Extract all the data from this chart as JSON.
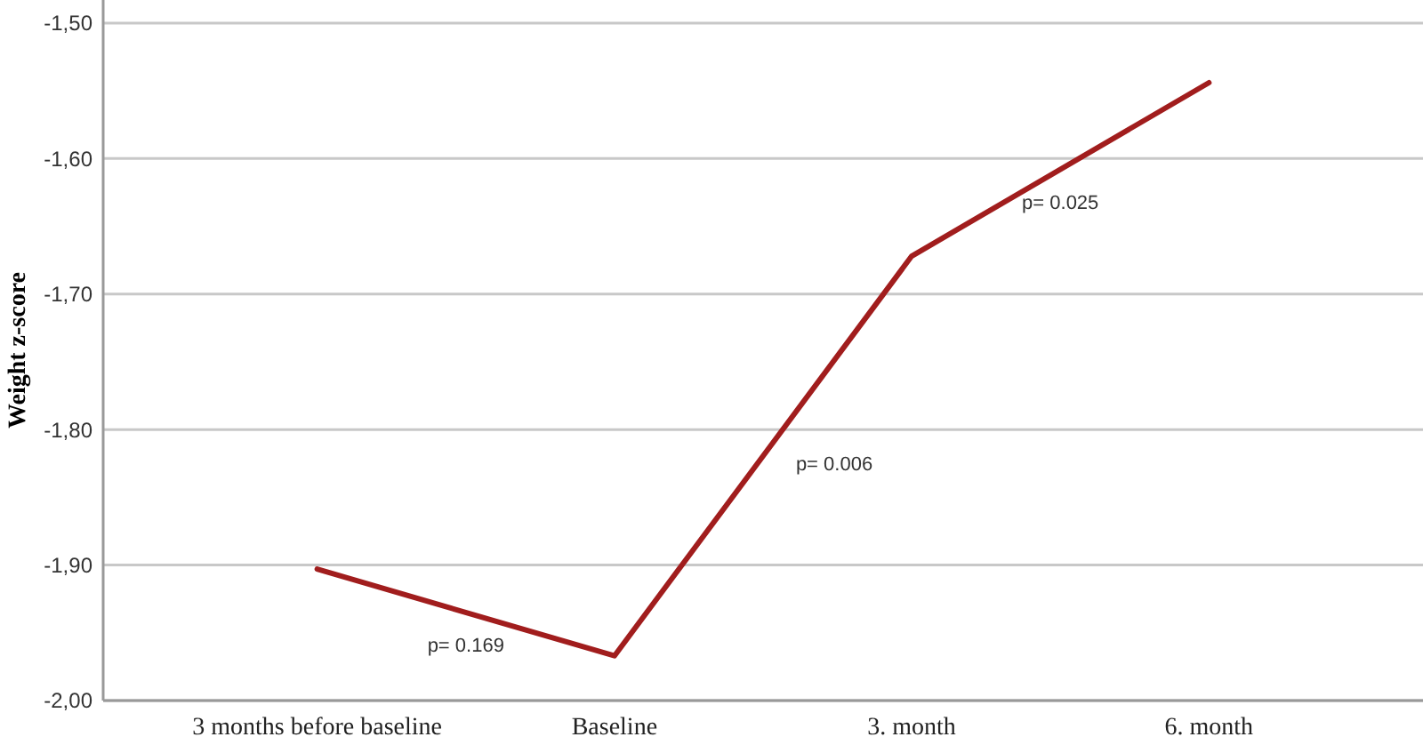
{
  "chart_data": {
    "type": "line",
    "ylabel": "Weight z-score",
    "categories": [
      "3 months before baseline",
      "Baseline",
      "3. month",
      "6. month"
    ],
    "series": [
      {
        "color": "#a11d1d",
        "values": [
          -1.903,
          -1.967,
          -1.672,
          -1.544
        ]
      }
    ],
    "ylim": [
      -2.0,
      -1.483
    ],
    "yticks": [
      {
        "value": -2.0,
        "label": "-2,00"
      },
      {
        "value": -1.9,
        "label": "-1,90"
      },
      {
        "value": -1.8,
        "label": "-1,80"
      },
      {
        "value": -1.7,
        "label": "-1,70"
      },
      {
        "value": -1.6,
        "label": "-1,60"
      },
      {
        "value": -1.5,
        "label": "-1,50"
      }
    ],
    "grid": "y",
    "marker": "none",
    "line_style": "solid",
    "annotations": [
      "p= 0.169",
      "p= 0.006",
      "p= 0.025"
    ]
  }
}
